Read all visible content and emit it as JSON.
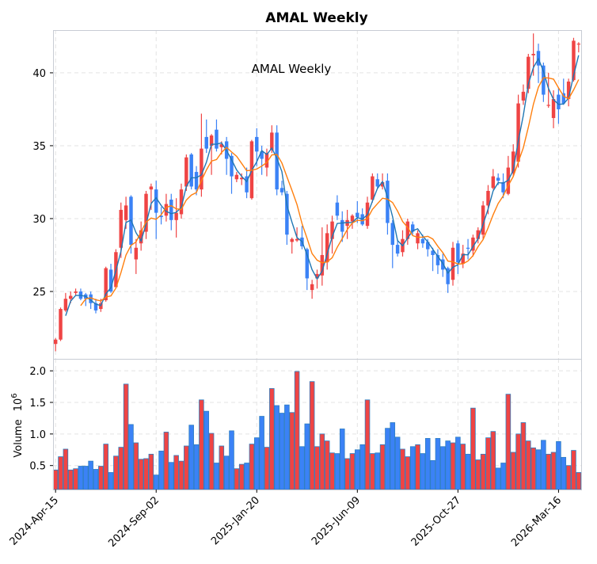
{
  "chart_data": {
    "type": "candlestick",
    "title": "AMAL  Weekly",
    "annotation": "AMAL  Weekly",
    "ylabel_volume": "Volume",
    "ylabel_volume_exponent": "10",
    "ylabel_volume_power": "6",
    "up_color": "#ef4444",
    "down_color": "#3b82f6",
    "volume_edge_color": "#2f7fc1",
    "ma_colors": [
      "#1f77b4",
      "#ff7f0e"
    ],
    "moving_averages": [
      3,
      6
    ],
    "price_ylim": [
      20.38,
      42.93
    ],
    "price_yticks": [
      25,
      30,
      35,
      40
    ],
    "volume_ylim": [
      0.12,
      2.19
    ],
    "volume_yticks": [
      "0.5",
      "1.0",
      "1.5",
      "2.0"
    ],
    "volume_ytick_values": [
      0.5,
      1.0,
      1.5,
      2.0
    ],
    "xticks": [
      {
        "index": 0,
        "label": "2024-Apr-15"
      },
      {
        "index": 20,
        "label": "2024-Sep-02"
      },
      {
        "index": 40,
        "label": "2025-Jan-20"
      },
      {
        "index": 60,
        "label": "2025-Jun-09"
      },
      {
        "index": 80,
        "label": "2025-Oct-27"
      },
      {
        "index": 100,
        "label": "2026-Mar-16"
      }
    ],
    "ohlc": [
      [
        21.4,
        21.8,
        20.9,
        21.7
      ],
      [
        21.7,
        23.9,
        21.6,
        23.8
      ],
      [
        23.7,
        24.9,
        23.6,
        24.5
      ],
      [
        24.5,
        25.0,
        24.2,
        24.7
      ],
      [
        24.9,
        25.2,
        24.7,
        25.0
      ],
      [
        25.0,
        25.2,
        24.4,
        24.5
      ],
      [
        24.8,
        24.9,
        24.0,
        24.5
      ],
      [
        24.8,
        25.0,
        23.8,
        24.2
      ],
      [
        24.2,
        24.5,
        23.5,
        23.7
      ],
      [
        23.8,
        24.5,
        23.6,
        24.2
      ],
      [
        24.4,
        26.7,
        24.3,
        26.6
      ],
      [
        26.5,
        26.9,
        24.9,
        25.0
      ],
      [
        25.3,
        27.9,
        25.2,
        27.7
      ],
      [
        28.0,
        31.1,
        27.3,
        30.6
      ],
      [
        29.9,
        31.5,
        29.3,
        30.9
      ],
      [
        31.5,
        31.6,
        27.6,
        28.2
      ],
      [
        27.2,
        28.6,
        26.2,
        28.0
      ],
      [
        28.3,
        29.8,
        27.8,
        29.2
      ],
      [
        29.1,
        31.9,
        28.6,
        31.7
      ],
      [
        32.0,
        32.4,
        30.6,
        32.2
      ],
      [
        32.0,
        32.6,
        28.6,
        30.4
      ],
      [
        30.2,
        30.8,
        29.6,
        30.1
      ],
      [
        30.2,
        31.7,
        29.8,
        31.0
      ],
      [
        31.3,
        31.7,
        29.2,
        29.9
      ],
      [
        29.9,
        31.4,
        28.7,
        30.4
      ],
      [
        30.3,
        32.4,
        30.0,
        32.0
      ],
      [
        32.2,
        34.4,
        31.9,
        34.2
      ],
      [
        34.4,
        34.5,
        32.0,
        32.2
      ],
      [
        33.2,
        33.6,
        31.6,
        32.0
      ],
      [
        32.0,
        37.2,
        31.5,
        34.8
      ],
      [
        35.6,
        36.8,
        34.5,
        34.8
      ],
      [
        35.0,
        35.8,
        33.0,
        35.7
      ],
      [
        36.1,
        36.8,
        34.6,
        34.8
      ],
      [
        34.9,
        35.3,
        34.4,
        35.1
      ],
      [
        35.3,
        35.6,
        33.0,
        34.1
      ],
      [
        34.3,
        34.5,
        31.7,
        32.9
      ],
      [
        32.7,
        33.2,
        32.5,
        33.0
      ],
      [
        32.7,
        33.1,
        32.3,
        32.8
      ],
      [
        32.9,
        33.5,
        31.4,
        31.8
      ],
      [
        31.4,
        35.4,
        31.3,
        35.3
      ],
      [
        35.6,
        36.2,
        33.6,
        34.6
      ],
      [
        34.6,
        35.0,
        33.0,
        34.1
      ],
      [
        33.5,
        34.8,
        32.9,
        34.5
      ],
      [
        34.7,
        36.4,
        34.5,
        35.9
      ],
      [
        35.9,
        36.4,
        31.6,
        32.0
      ],
      [
        32.1,
        32.6,
        31.6,
        31.8
      ],
      [
        31.7,
        31.9,
        28.2,
        28.9
      ],
      [
        28.4,
        28.7,
        27.6,
        28.6
      ],
      [
        28.5,
        29.4,
        28.4,
        28.6
      ],
      [
        28.7,
        29.5,
        27.9,
        28.1
      ],
      [
        27.9,
        28.0,
        25.1,
        25.9
      ],
      [
        25.1,
        25.8,
        24.5,
        25.5
      ],
      [
        25.9,
        26.5,
        25.2,
        26.2
      ],
      [
        26.1,
        29.4,
        25.4,
        27.5
      ],
      [
        27.0,
        29.6,
        26.5,
        29.0
      ],
      [
        28.6,
        30.2,
        27.6,
        29.8
      ],
      [
        31.1,
        31.6,
        29.9,
        30.2
      ],
      [
        29.9,
        30.5,
        28.4,
        29.1
      ],
      [
        29.5,
        30.6,
        28.6,
        29.9
      ],
      [
        29.8,
        30.3,
        29.3,
        30.2
      ],
      [
        30.4,
        31.2,
        29.7,
        30.1
      ],
      [
        30.3,
        30.7,
        29.5,
        29.6
      ],
      [
        29.5,
        31.5,
        29.3,
        31.1
      ],
      [
        31.3,
        33.1,
        31.1,
        32.9
      ],
      [
        32.7,
        33.1,
        32.1,
        32.2
      ],
      [
        32.2,
        33.1,
        32.0,
        32.5
      ],
      [
        32.6,
        33.1,
        28.9,
        29.7
      ],
      [
        29.7,
        29.9,
        26.6,
        28.2
      ],
      [
        28.2,
        28.5,
        27.4,
        27.6
      ],
      [
        27.7,
        29.2,
        27.4,
        28.6
      ],
      [
        28.6,
        30.0,
        28.2,
        29.8
      ],
      [
        29.6,
        29.8,
        28.9,
        29.1
      ],
      [
        28.3,
        29.2,
        27.9,
        29.0
      ],
      [
        28.6,
        28.9,
        28.0,
        28.3
      ],
      [
        28.4,
        28.6,
        27.4,
        27.9
      ],
      [
        27.8,
        28.0,
        26.4,
        27.5
      ],
      [
        27.5,
        27.9,
        26.2,
        26.8
      ],
      [
        27.2,
        27.6,
        26.0,
        26.5
      ],
      [
        26.6,
        26.7,
        24.9,
        25.5
      ],
      [
        25.8,
        28.4,
        25.4,
        28.0
      ],
      [
        28.3,
        28.5,
        26.2,
        27.0
      ],
      [
        26.9,
        28.2,
        26.6,
        27.6
      ],
      [
        28.0,
        28.6,
        27.2,
        27.95
      ],
      [
        27.8,
        28.9,
        27.4,
        28.7
      ],
      [
        28.6,
        29.4,
        28.3,
        29.2
      ],
      [
        28.9,
        31.2,
        28.6,
        30.9
      ],
      [
        30.9,
        32.3,
        30.3,
        31.9
      ],
      [
        32.1,
        33.4,
        32.0,
        32.9
      ],
      [
        32.8,
        33.1,
        32.3,
        32.6
      ],
      [
        32.5,
        33.1,
        31.4,
        31.8
      ],
      [
        31.7,
        34.3,
        31.6,
        33.5
      ],
      [
        33.1,
        35.1,
        32.9,
        34.6
      ],
      [
        33.9,
        38.5,
        33.5,
        37.9
      ],
      [
        38.1,
        39.2,
        37.8,
        38.7
      ],
      [
        38.9,
        41.3,
        38.6,
        41.1
      ],
      [
        41.2,
        42.7,
        39.8,
        41.3
      ],
      [
        41.5,
        42.0,
        39.3,
        40.5
      ],
      [
        40.5,
        40.7,
        38.0,
        38.5
      ],
      [
        37.75,
        40.0,
        37.6,
        37.8
      ],
      [
        36.9,
        38.8,
        36.2,
        38.2
      ],
      [
        38.5,
        39.0,
        36.5,
        37.5
      ],
      [
        38.6,
        39.6,
        37.8,
        37.9
      ],
      [
        38.2,
        39.6,
        37.7,
        39.4
      ],
      [
        39.5,
        42.4,
        39.4,
        42.2
      ],
      [
        41.95,
        42.1,
        41.4,
        42.0
      ]
    ],
    "volume": [
      0.43,
      0.64,
      0.76,
      0.43,
      0.45,
      0.49,
      0.49,
      0.57,
      0.44,
      0.49,
      0.84,
      0.39,
      0.65,
      0.79,
      1.79,
      1.15,
      0.86,
      0.6,
      0.61,
      0.68,
      0.35,
      0.73,
      1.03,
      0.55,
      0.66,
      0.57,
      0.81,
      1.14,
      0.83,
      1.54,
      1.36,
      1.01,
      0.54,
      0.81,
      0.65,
      1.05,
      0.45,
      0.52,
      0.54,
      0.84,
      0.94,
      1.28,
      0.79,
      1.72,
      1.45,
      1.33,
      1.46,
      1.34,
      1.99,
      0.8,
      1.16,
      1.83,
      0.8,
      1.0,
      0.89,
      0.7,
      0.69,
      1.08,
      0.61,
      0.69,
      0.75,
      0.83,
      1.54,
      0.69,
      0.7,
      0.83,
      1.09,
      1.18,
      0.95,
      0.76,
      0.64,
      0.8,
      0.83,
      0.69,
      0.93,
      0.58,
      0.93,
      0.8,
      0.89,
      0.86,
      0.95,
      0.84,
      0.68,
      1.41,
      0.59,
      0.68,
      0.94,
      1.04,
      0.46,
      0.54,
      1.63,
      0.71,
      1.0,
      1.18,
      0.89,
      0.78,
      0.75,
      0.9,
      0.68,
      0.71,
      0.88,
      0.63,
      0.5,
      0.74,
      0.39
    ]
  }
}
